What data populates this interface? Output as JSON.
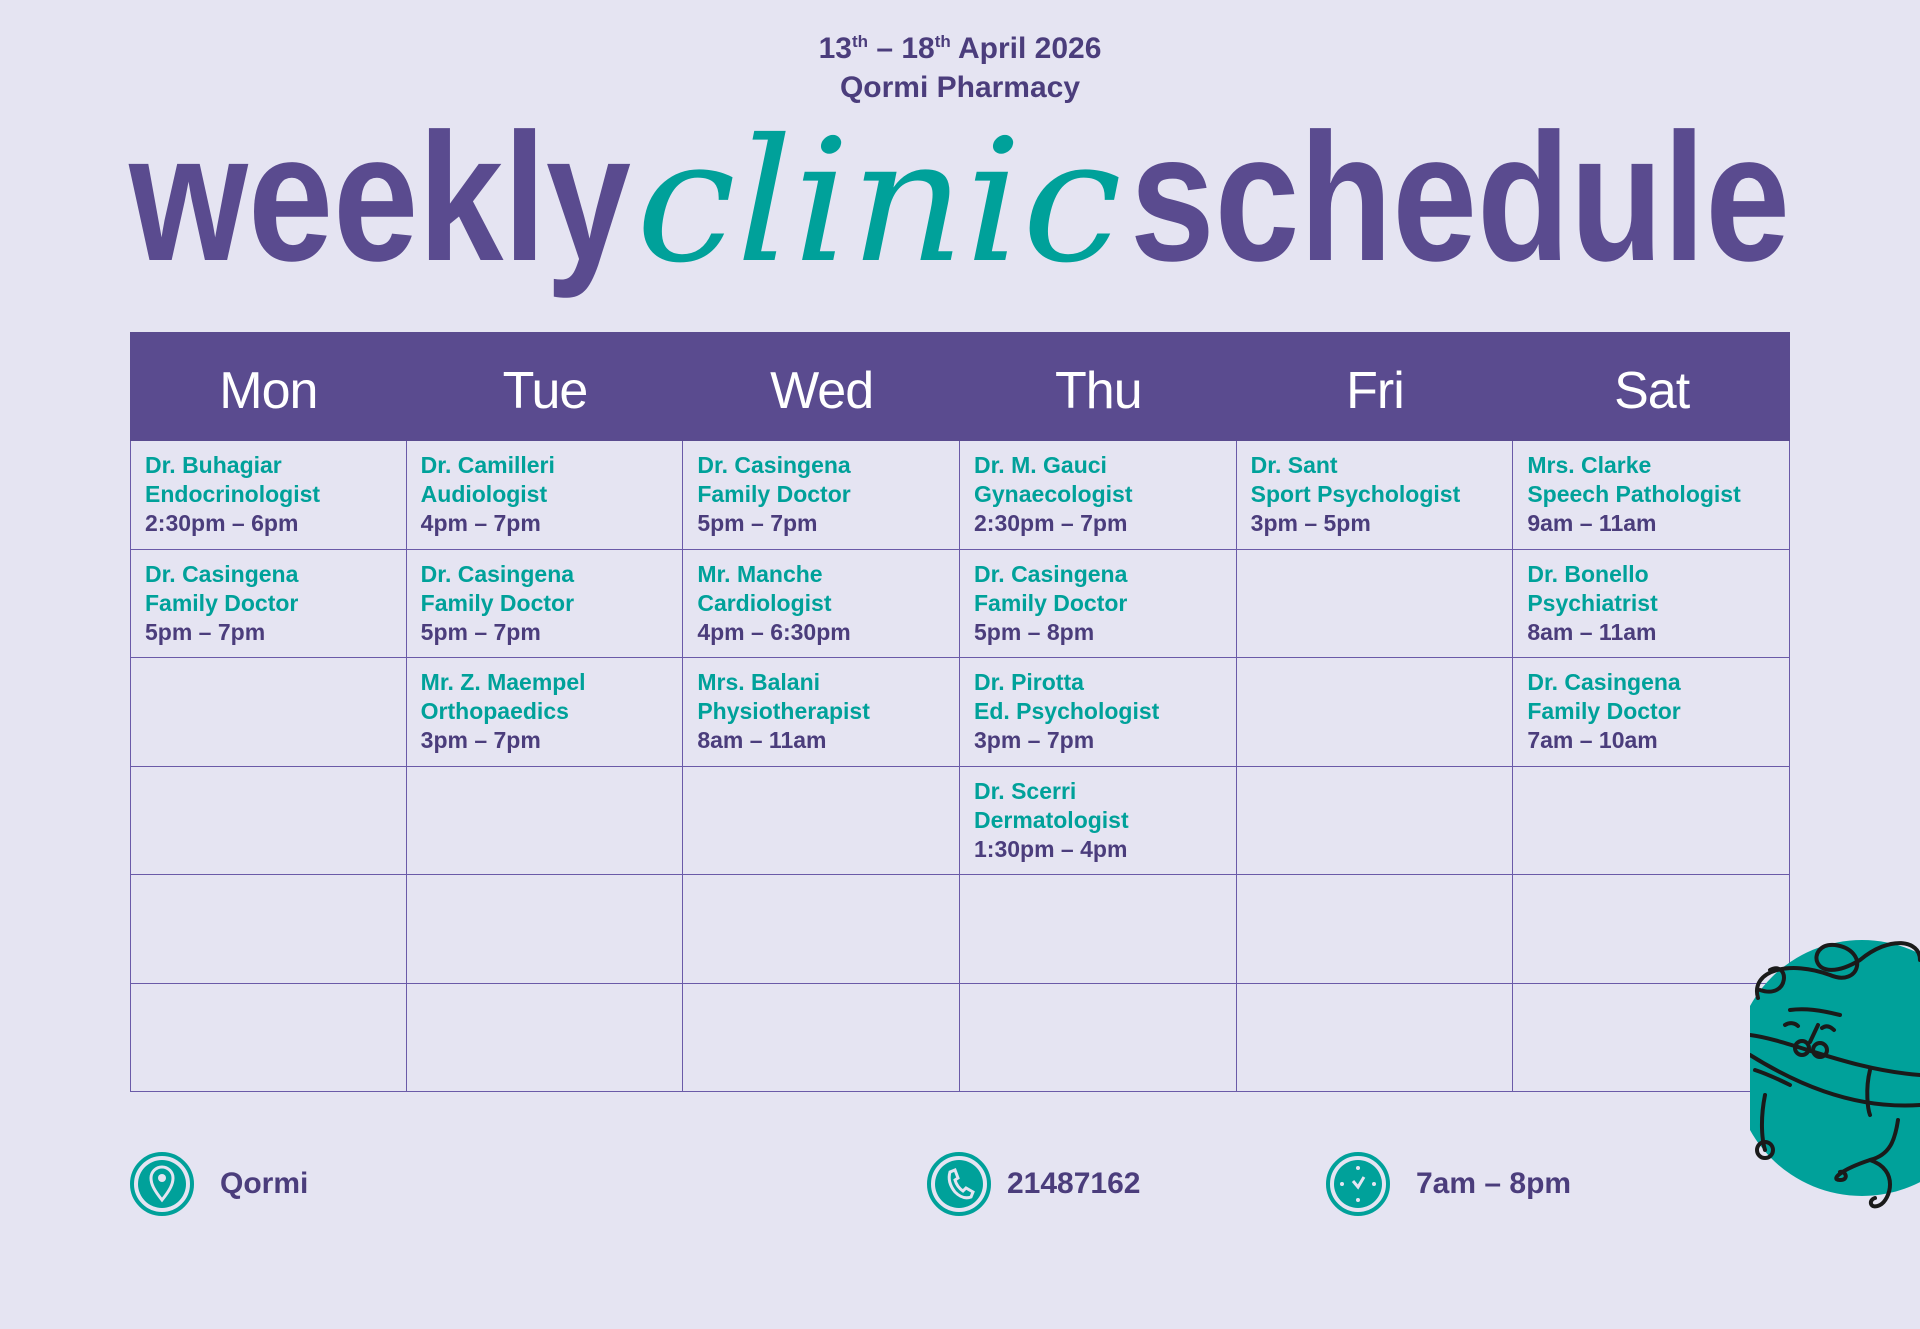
{
  "header": {
    "date_start": "13",
    "date_start_suffix": "th",
    "date_sep": " – ",
    "date_end": "18",
    "date_end_suffix": "th",
    "date_month_year": " April 2026",
    "location_name": "Qormi Pharmacy"
  },
  "title": {
    "part1": "weekly",
    "part2": "clinic",
    "part3": "schedule"
  },
  "colors": {
    "purple": "#5a4b8f",
    "teal": "#00a19a",
    "background": "#e5e4f2",
    "text_purple": "#4b3d7c"
  },
  "schedule": {
    "days": [
      {
        "label": "Mon",
        "slots": [
          {
            "name": "Dr. Buhagiar",
            "specialty": "Endocrinologist",
            "time": "2:30pm – 6pm"
          },
          {
            "name": "Dr. Casingena",
            "specialty": "Family Doctor",
            "time": "5pm – 7pm"
          },
          null,
          null,
          null,
          null
        ]
      },
      {
        "label": "Tue",
        "slots": [
          {
            "name": "Dr. Camilleri",
            "specialty": "Audiologist",
            "time": "4pm – 7pm"
          },
          {
            "name": "Dr. Casingena",
            "specialty": "Family Doctor",
            "time": "5pm – 7pm"
          },
          {
            "name": "Mr. Z. Maempel",
            "specialty": "Orthopaedics",
            "time": "3pm – 7pm"
          },
          null,
          null,
          null
        ]
      },
      {
        "label": "Wed",
        "slots": [
          {
            "name": "Dr. Casingena",
            "specialty": "Family Doctor",
            "time": "5pm – 7pm"
          },
          {
            "name": "Mr. Manche",
            "specialty": "Cardiologist",
            "time": "4pm – 6:30pm"
          },
          {
            "name": "Mrs. Balani",
            "specialty": "Physiotherapist",
            "time": "8am – 11am"
          },
          null,
          null,
          null
        ]
      },
      {
        "label": "Thu",
        "slots": [
          {
            "name": "Dr. M. Gauci",
            "specialty": "Gynaecologist",
            "time": "2:30pm – 7pm"
          },
          {
            "name": "Dr. Casingena",
            "specialty": "Family Doctor",
            "time": "5pm – 8pm"
          },
          {
            "name": "Dr. Pirotta",
            "specialty": "Ed. Psychologist",
            "time": "3pm – 7pm"
          },
          {
            "name": "Dr. Scerri",
            "specialty": "Dermatologist",
            "time": "1:30pm – 4pm"
          },
          null,
          null
        ]
      },
      {
        "label": "Fri",
        "slots": [
          {
            "name": "Dr. Sant",
            "specialty": "Sport Psychologist",
            "time": "3pm – 5pm"
          },
          null,
          null,
          null,
          null,
          null
        ]
      },
      {
        "label": "Sat",
        "slots": [
          {
            "name": "Mrs. Clarke",
            "specialty": "Speech Pathologist",
            "time": "9am – 11am"
          },
          {
            "name": "Dr. Bonello",
            "specialty": "Psychiatrist",
            "time": "8am – 11am"
          },
          {
            "name": "Dr. Casingena",
            "specialty": "Family Doctor",
            "time": "7am – 10am"
          },
          null,
          null,
          null
        ]
      }
    ]
  },
  "footer": {
    "location": {
      "icon": "map-pin-icon",
      "text": "Qormi"
    },
    "phone": {
      "icon": "phone-icon",
      "text": "21487162"
    },
    "hours": {
      "icon": "clock-icon",
      "text": "7am – 8pm"
    }
  }
}
